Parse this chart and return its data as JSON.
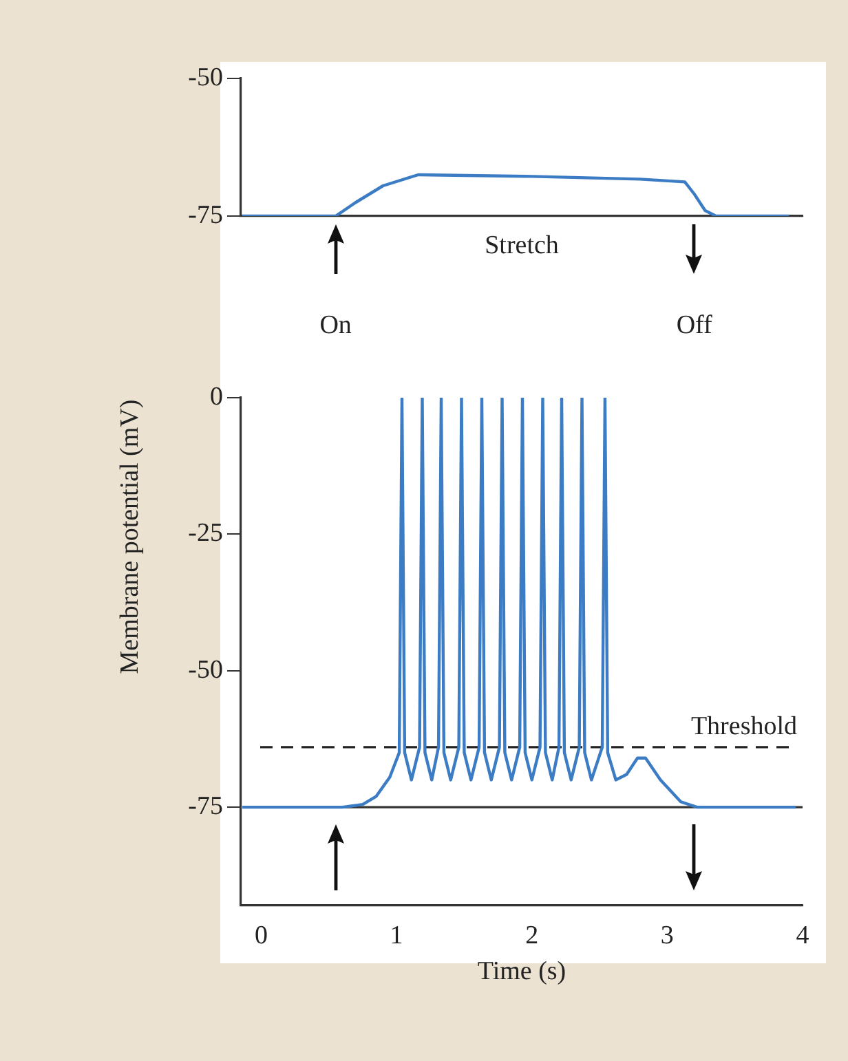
{
  "chart_data": [
    {
      "type": "line",
      "xlim": [
        -0.15,
        4
      ],
      "ylim": [
        -75,
        -50
      ],
      "yticks": [
        -50,
        -75
      ],
      "tick_labels": "y",
      "grid": false,
      "legend": false,
      "marker": "none",
      "line_style": "solid",
      "annotations": [
        "Stretch",
        "On",
        "Off"
      ],
      "series": [
        {
          "color": "#3c7cc4",
          "x": [
            -0.14,
            0.55,
            0.7,
            0.9,
            1.16,
            2.0,
            2.8,
            3.13,
            3.2,
            3.28,
            3.36,
            3.9
          ],
          "values": [
            -75,
            -75,
            -72.5,
            -69.5,
            -67.5,
            -67.8,
            -68.3,
            -68.8,
            -71,
            -74,
            -75,
            -75
          ]
        }
      ]
    },
    {
      "type": "line",
      "xlim": [
        -0.15,
        4
      ],
      "ylim": [
        -93,
        0
      ],
      "yticks": [
        0,
        -25,
        -50,
        -75
      ],
      "xticks": [
        0,
        1,
        2,
        3,
        4
      ],
      "xlabel": "Time (s)",
      "ylabel": "Membrane potential (mV)",
      "grid": false,
      "legend": false,
      "marker": "none",
      "line_style": "solid",
      "ref_lines": [
        {
          "axis": "y",
          "value": -75,
          "color": "#333333",
          "line_style": "solid"
        },
        {
          "axis": "y",
          "value": -64,
          "label": "Threshold",
          "color": "#222222",
          "line_style": "dashed"
        }
      ],
      "series": [
        {
          "color": "#3c7cc4",
          "x": [
            -0.14,
            0.6,
            0.75,
            0.85,
            0.95,
            1.02,
            1.04,
            1.06,
            1.11,
            1.17,
            1.19,
            1.21,
            1.26,
            1.31,
            1.33,
            1.35,
            1.4,
            1.46,
            1.48,
            1.5,
            1.55,
            1.61,
            1.63,
            1.65,
            1.7,
            1.76,
            1.78,
            1.8,
            1.85,
            1.91,
            1.93,
            1.95,
            2.0,
            2.06,
            2.08,
            2.1,
            2.15,
            2.2,
            2.22,
            2.24,
            2.29,
            2.35,
            2.37,
            2.39,
            2.44,
            2.52,
            2.54,
            2.56,
            2.62,
            2.7,
            2.78,
            2.84,
            2.95,
            3.1,
            3.22,
            3.95
          ],
          "values": [
            -75,
            -75,
            -74.5,
            -73,
            -69.5,
            -65,
            0,
            -65,
            -70,
            -64,
            0,
            -65,
            -70,
            -64,
            0,
            -65,
            -70,
            -64,
            0,
            -65,
            -70,
            -64,
            0,
            -65,
            -70,
            -64,
            0,
            -65,
            -70,
            -64,
            0,
            -65,
            -70,
            -64,
            0,
            -65,
            -70,
            -64,
            0,
            -65,
            -70,
            -64,
            0,
            -65,
            -70,
            -64,
            0,
            -65,
            -70,
            -69,
            -66,
            -66,
            -70,
            -74,
            -75,
            -75
          ]
        }
      ]
    }
  ]
}
